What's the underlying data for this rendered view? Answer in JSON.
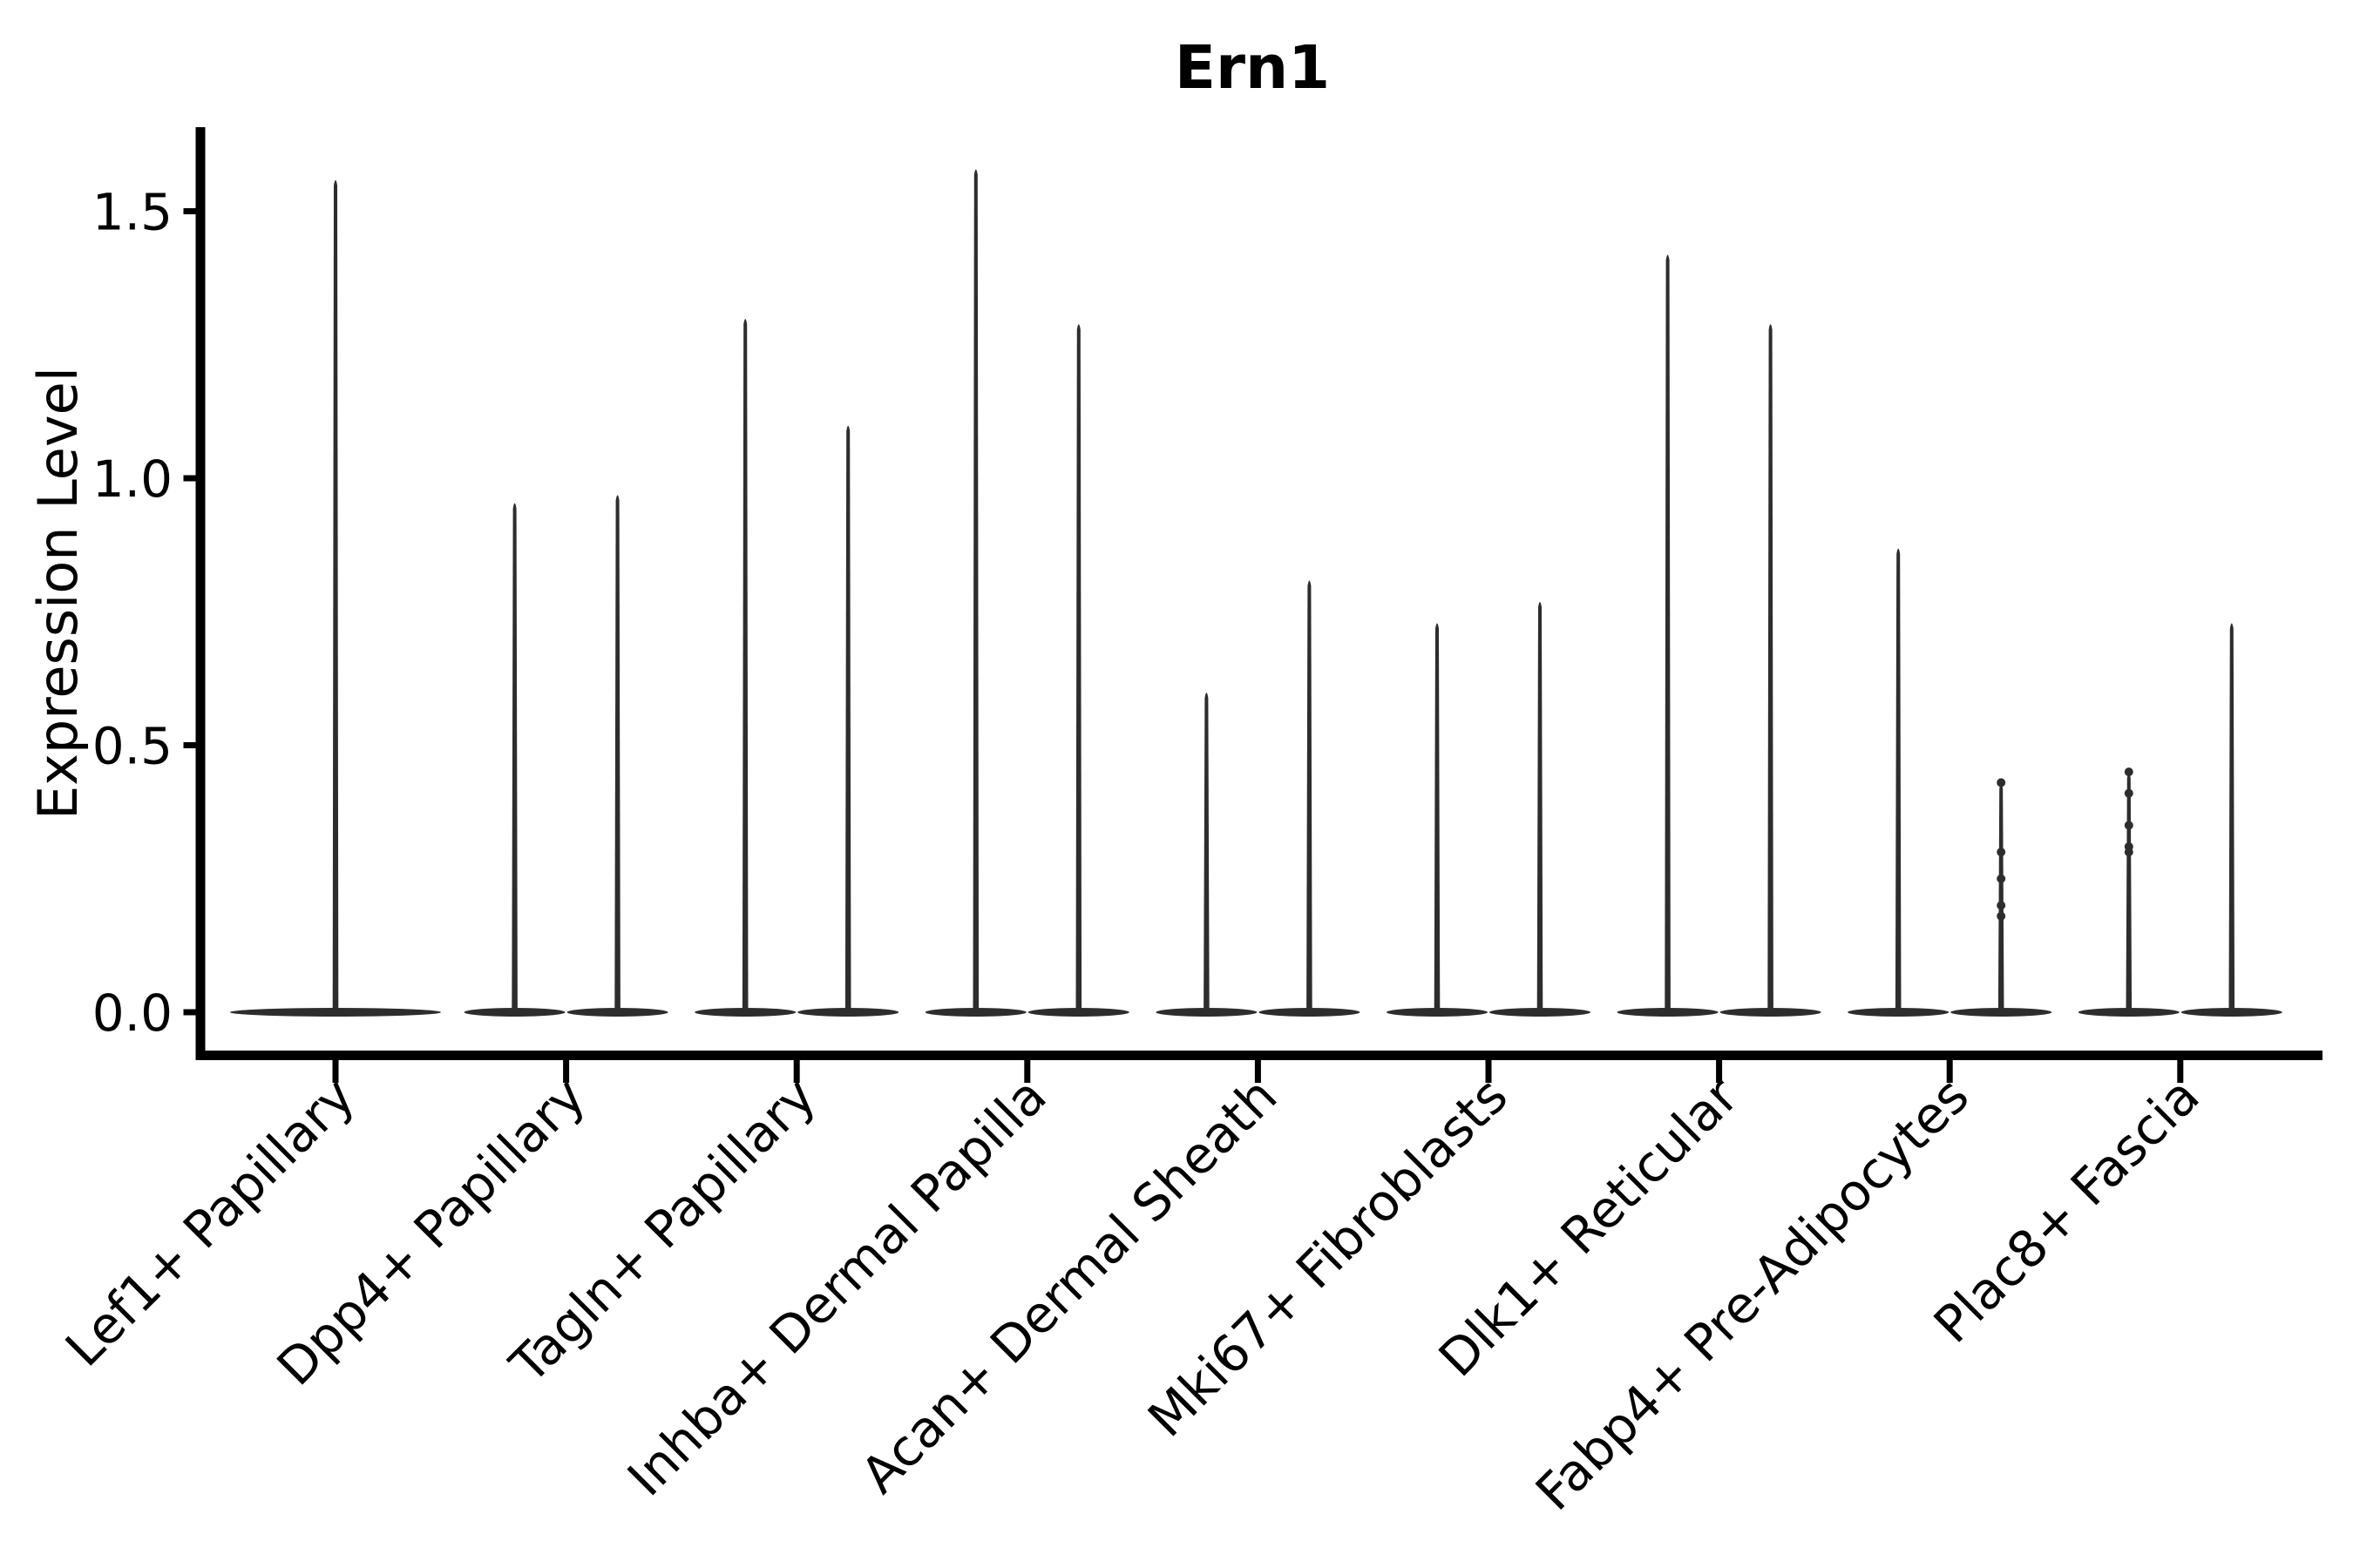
{
  "figure": {
    "background_color": "#ffffff",
    "axis_color": "#000000",
    "violin_color": "#2d2d2d"
  },
  "chart_data": {
    "type": "violin",
    "title": "Ern1",
    "xlabel": "",
    "ylabel": "Expression Level",
    "legend": "none",
    "grid": false,
    "ylim": [
      -0.09,
      1.66
    ],
    "ytick_values": [
      0.0,
      0.5,
      1.0,
      1.5
    ],
    "ytick_labels": [
      "0.0",
      "0.5",
      "1.0",
      "1.5"
    ],
    "categories": [
      "Lef1+ Papillary",
      "Dpp4+ Papillary",
      "Tagln+ Papillary",
      "Inhba+ Dermal Papilla",
      "Acan+ Dermal Sheath",
      "Mki67+ Fibroblasts",
      "Dlk1+ Reticular",
      "Fabp4+ Pre-Adipocytes",
      "Plac8+ Fascia"
    ],
    "violins": [
      {
        "category": "Lef1+ Papillary",
        "violins": [
          {
            "min": 0,
            "max": 1.56
          }
        ]
      },
      {
        "category": "Dpp4+ Papillary",
        "violins": [
          {
            "min": 0,
            "max": 0.955
          },
          {
            "min": 0,
            "max": 0.97
          }
        ]
      },
      {
        "category": "Tagln+ Papillary",
        "violins": [
          {
            "min": 0,
            "max": 1.3
          },
          {
            "min": 0,
            "max": 1.1
          }
        ]
      },
      {
        "category": "Inhba+ Dermal Papilla",
        "violins": [
          {
            "min": 0,
            "max": 1.58
          },
          {
            "min": 0,
            "max": 1.29
          }
        ]
      },
      {
        "category": "Acan+ Dermal Sheath",
        "violins": [
          {
            "min": 0,
            "max": 0.6
          },
          {
            "min": 0,
            "max": 0.81
          }
        ]
      },
      {
        "category": "Mki67+ Fibroblasts",
        "violins": [
          {
            "min": 0,
            "max": 0.73
          },
          {
            "min": 0,
            "max": 0.77
          }
        ]
      },
      {
        "category": "Dlk1+ Reticular",
        "violins": [
          {
            "min": 0,
            "max": 1.42
          },
          {
            "min": 0,
            "max": 1.29
          }
        ]
      },
      {
        "category": "Fabp4+ Pre-Adipocytes",
        "violins": [
          {
            "min": 0,
            "max": 0.87
          },
          {
            "min": 0,
            "max": 0.43,
            "points": [
              0.43,
              0.3,
              0.25,
              0.2,
              0.18
            ]
          }
        ]
      },
      {
        "category": "Plac8+ Fascia",
        "violins": [
          {
            "min": 0,
            "max": 0.45,
            "points": [
              0.45,
              0.41,
              0.35,
              0.31,
              0.3
            ]
          },
          {
            "min": 0,
            "max": 0.73
          }
        ]
      }
    ]
  }
}
